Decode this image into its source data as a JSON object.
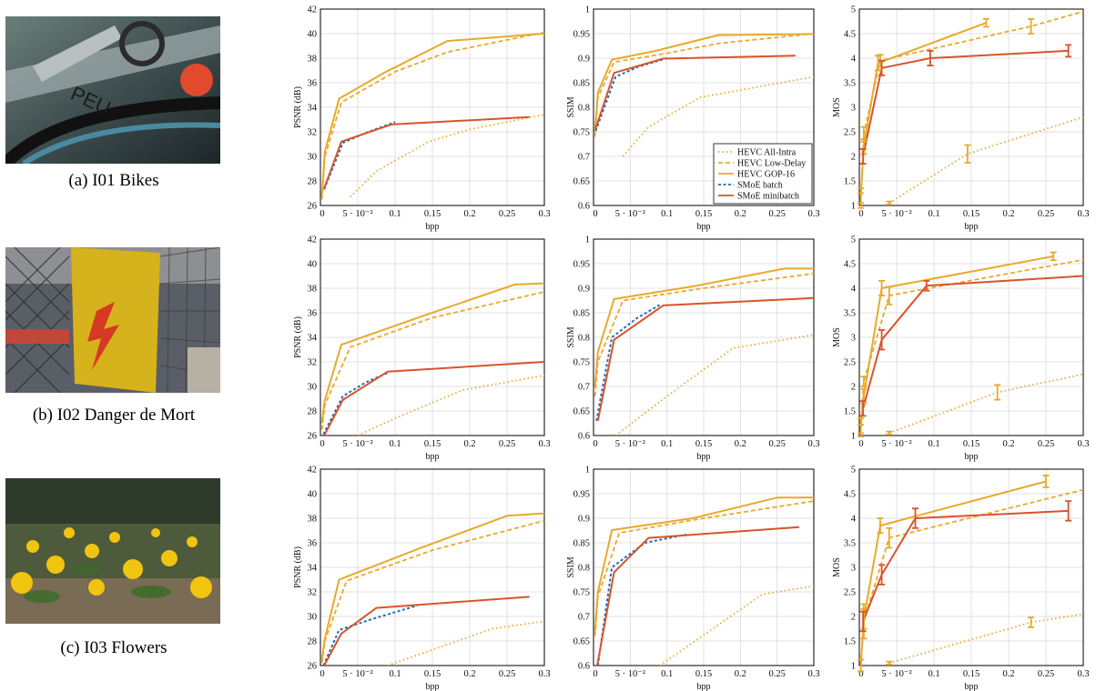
{
  "captions": [
    "(a) I01 Bikes",
    "(b) I02 Danger de Mort",
    "(c) I03 Flowers"
  ],
  "thumbnails": [
    {
      "alt": "I01 Bikes photo",
      "icon": "bicycle-photo"
    },
    {
      "alt": "I02 Danger de Mort photo",
      "icon": "danger-sign-photo"
    },
    {
      "alt": "I03 Flowers photo",
      "icon": "flowers-photo"
    }
  ],
  "colors": {
    "hevc": "#E8A92A",
    "smoe_batch": "#1F6FB4",
    "smoe_minibatch": "#D9532B",
    "grid": "#d9d9d9"
  },
  "legend": {
    "position": "inside lower-right of row 1 SSIM plot",
    "entries": [
      {
        "label": "HEVC All-Intra",
        "style": "dotted",
        "color": "#E8A92A"
      },
      {
        "label": "HEVC Low-Delay",
        "style": "dashed",
        "color": "#E8A92A"
      },
      {
        "label": "HEVC GOP-16",
        "style": "solid",
        "color": "#E8A92A"
      },
      {
        "label": "SMoE batch",
        "style": "dashed",
        "color": "#1F6FB4"
      },
      {
        "label": "SMoE minibatch",
        "style": "solid",
        "color": "#D9532B"
      }
    ]
  },
  "chart_data": [
    {
      "type": "line",
      "image": "I01 Bikes",
      "metric": "PSNR",
      "xlabel": "bpp",
      "ylabel": "PSNR (dB)",
      "xlim": [
        0,
        0.3
      ],
      "ylim": [
        26,
        42
      ],
      "xticks": [
        "0",
        "5 · 10⁻²",
        "0.1",
        "0.15",
        "0.2",
        "0.25",
        "0.3"
      ],
      "yticks": [
        "26",
        "28",
        "30",
        "32",
        "34",
        "36",
        "38",
        "40",
        "42"
      ],
      "grid": true,
      "series": [
        {
          "name": "HEVC All-Intra",
          "x": [
            0.04,
            0.075,
            0.145,
            0.2,
            0.3
          ],
          "y": [
            26.7,
            28.8,
            31.2,
            32.2,
            33.4
          ]
        },
        {
          "name": "HEVC Low-Delay",
          "x": [
            0.002,
            0.006,
            0.028,
            0.1,
            0.17,
            0.3
          ],
          "y": [
            26.5,
            30.0,
            34.4,
            36.9,
            38.5,
            40.1
          ]
        },
        {
          "name": "HEVC GOP-16",
          "x": [
            0.002,
            0.006,
            0.025,
            0.085,
            0.17,
            0.3
          ],
          "y": [
            26.8,
            30.4,
            34.7,
            36.8,
            39.4,
            40.0
          ]
        },
        {
          "name": "SMoE batch",
          "x": [
            0.005,
            0.03,
            0.06,
            0.1
          ],
          "y": [
            27.3,
            31.1,
            31.9,
            32.8
          ]
        },
        {
          "name": "SMoE minibatch",
          "x": [
            0.005,
            0.028,
            0.095,
            0.28
          ],
          "y": [
            27.4,
            31.2,
            32.6,
            33.2
          ]
        }
      ]
    },
    {
      "type": "line",
      "image": "I01 Bikes",
      "metric": "SSIM",
      "xlabel": "bpp",
      "ylabel": "SSIM",
      "xlim": [
        0,
        0.3
      ],
      "ylim": [
        0.6,
        1
      ],
      "xticks": [
        "0",
        "5 · 10⁻²",
        "0.1",
        "0.15",
        "0.2",
        "0.25",
        "0.3"
      ],
      "yticks": [
        "0.6",
        "0.65",
        "0.7",
        "0.75",
        "0.8",
        "0.85",
        "0.9",
        "0.95",
        "1"
      ],
      "grid": true,
      "series": [
        {
          "name": "HEVC All-Intra",
          "x": [
            0.04,
            0.075,
            0.145,
            0.2,
            0.3
          ],
          "y": [
            0.7,
            0.76,
            0.82,
            0.835,
            0.862
          ]
        },
        {
          "name": "HEVC Low-Delay",
          "x": [
            0.002,
            0.006,
            0.028,
            0.1,
            0.17,
            0.3
          ],
          "y": [
            0.74,
            0.82,
            0.892,
            0.91,
            0.93,
            0.95
          ]
        },
        {
          "name": "HEVC GOP-16",
          "x": [
            0.002,
            0.006,
            0.025,
            0.085,
            0.17,
            0.3
          ],
          "y": [
            0.75,
            0.83,
            0.897,
            0.915,
            0.947,
            0.949
          ]
        },
        {
          "name": "SMoE batch",
          "x": [
            0.003,
            0.03,
            0.06,
            0.1
          ],
          "y": [
            0.752,
            0.862,
            0.882,
            0.9
          ]
        },
        {
          "name": "SMoE minibatch",
          "x": [
            0.003,
            0.028,
            0.095,
            0.275
          ],
          "y": [
            0.757,
            0.87,
            0.899,
            0.905
          ]
        }
      ]
    },
    {
      "type": "line",
      "image": "I01 Bikes",
      "metric": "MOS",
      "xlabel": "bpp",
      "ylabel": "MOS",
      "xlim": [
        0,
        0.3
      ],
      "ylim": [
        1,
        5
      ],
      "xticks": [
        "0",
        "5 · 10⁻²",
        "0.1",
        "0.15",
        "0.2",
        "0.25",
        "0.3"
      ],
      "yticks": [
        "1",
        "1.5",
        "2",
        "2.5",
        "3",
        "3.5",
        "4",
        "4.5",
        "5"
      ],
      "grid": true,
      "series": [
        {
          "name": "HEVC All-Intra",
          "x": [
            0.04,
            0.145,
            0.3
          ],
          "y": [
            1.05,
            2.05,
            2.8
          ],
          "err": [
            0.03,
            0.18,
            null
          ]
        },
        {
          "name": "HEVC Low-Delay",
          "x": [
            0.002,
            0.006,
            0.028,
            0.23,
            0.3
          ],
          "y": [
            1.1,
            2.45,
            3.95,
            4.65,
            4.95
          ],
          "err": [
            0.15,
            0.15,
            0.12,
            0.15,
            null
          ]
        },
        {
          "name": "HEVC GOP-16",
          "x": [
            0.002,
            0.006,
            0.025,
            0.17
          ],
          "y": [
            1.2,
            2.2,
            3.9,
            4.72
          ],
          "err": [
            0.15,
            0.15,
            0.15,
            0.08
          ]
        },
        {
          "name": "SMoE minibatch",
          "x": [
            0.005,
            0.03,
            0.095,
            0.28
          ],
          "y": [
            2.0,
            3.8,
            4.0,
            4.15
          ],
          "err": [
            0.15,
            0.15,
            0.15,
            0.12
          ]
        }
      ]
    },
    {
      "type": "line",
      "image": "I02 Danger de Mort",
      "metric": "PSNR",
      "xlabel": "bpp",
      "ylabel": "PSNR (dB)",
      "xlim": [
        0,
        0.3
      ],
      "ylim": [
        26,
        42
      ],
      "xticks": [
        "0",
        "5 · 10⁻²",
        "0.1",
        "0.15",
        "0.2",
        "0.25",
        "0.3"
      ],
      "yticks": [
        "26",
        "28",
        "30",
        "32",
        "34",
        "36",
        "38",
        "40",
        "42"
      ],
      "grid": true,
      "series": [
        {
          "name": "HEVC All-Intra",
          "x": [
            0.05,
            0.1,
            0.19,
            0.3
          ],
          "y": [
            26.0,
            27.4,
            29.7,
            30.9
          ]
        },
        {
          "name": "HEVC Low-Delay",
          "x": [
            0.002,
            0.006,
            0.04,
            0.15,
            0.3
          ],
          "y": [
            26.5,
            28.5,
            33.2,
            35.6,
            37.7
          ]
        },
        {
          "name": "HEVC GOP-16",
          "x": [
            0.002,
            0.006,
            0.028,
            0.14,
            0.26,
            0.3
          ],
          "y": [
            27.0,
            28.9,
            33.4,
            35.8,
            38.3,
            38.4
          ]
        },
        {
          "name": "SMoE batch",
          "x": [
            0.004,
            0.03,
            0.06,
            0.09
          ],
          "y": [
            26.1,
            29.2,
            30.3,
            31.1
          ]
        },
        {
          "name": "SMoE minibatch",
          "x": [
            0.005,
            0.03,
            0.09,
            0.3
          ],
          "y": [
            26.0,
            28.9,
            31.2,
            32.0
          ]
        }
      ]
    },
    {
      "type": "line",
      "image": "I02 Danger de Mort",
      "metric": "SSIM",
      "xlabel": "bpp",
      "ylabel": "SSIM",
      "xlim": [
        0,
        0.3
      ],
      "ylim": [
        0.6,
        1
      ],
      "xticks": [
        "0",
        "5 · 10⁻²",
        "0.1",
        "0.15",
        "0.2",
        "0.25",
        "0.3"
      ],
      "yticks": [
        "0.6",
        "0.65",
        "0.7",
        "0.75",
        "0.8",
        "0.85",
        "0.9",
        "0.95",
        "1"
      ],
      "grid": true,
      "series": [
        {
          "name": "HEVC All-Intra",
          "x": [
            0.03,
            0.1,
            0.19,
            0.3
          ],
          "y": [
            0.6,
            0.68,
            0.778,
            0.805
          ]
        },
        {
          "name": "HEVC Low-Delay",
          "x": [
            0.002,
            0.006,
            0.04,
            0.15,
            0.3
          ],
          "y": [
            0.68,
            0.75,
            0.875,
            0.9,
            0.93
          ]
        },
        {
          "name": "HEVC GOP-16",
          "x": [
            0.002,
            0.006,
            0.028,
            0.14,
            0.26,
            0.3
          ],
          "y": [
            0.7,
            0.77,
            0.878,
            0.905,
            0.94,
            0.94
          ]
        },
        {
          "name": "SMoE batch",
          "x": [
            0.004,
            0.025,
            0.06,
            0.09
          ],
          "y": [
            0.63,
            0.8,
            0.84,
            0.866
          ]
        },
        {
          "name": "SMoE minibatch",
          "x": [
            0.006,
            0.028,
            0.095,
            0.3
          ],
          "y": [
            0.63,
            0.795,
            0.865,
            0.88
          ]
        }
      ]
    },
    {
      "type": "line",
      "image": "I02 Danger de Mort",
      "metric": "MOS",
      "xlabel": "bpp",
      "ylabel": "MOS",
      "xlim": [
        0,
        0.3
      ],
      "ylim": [
        1,
        5
      ],
      "xticks": [
        "0",
        "5 · 10⁻²",
        "0.1",
        "0.15",
        "0.2",
        "0.25",
        "0.3"
      ],
      "yticks": [
        "1",
        "1.5",
        "2",
        "2.5",
        "3",
        "3.5",
        "4",
        "4.5",
        "5"
      ],
      "grid": true,
      "series": [
        {
          "name": "HEVC All-Intra",
          "x": [
            0.04,
            0.185,
            0.3
          ],
          "y": [
            1.05,
            1.88,
            2.25
          ],
          "err": [
            0.03,
            0.15,
            null
          ]
        },
        {
          "name": "HEVC Low-Delay",
          "x": [
            0.002,
            0.006,
            0.04,
            0.3
          ],
          "y": [
            1.1,
            2.1,
            3.85,
            4.58
          ],
          "err": [
            0.12,
            0.1,
            0.18,
            null
          ]
        },
        {
          "name": "HEVC GOP-16",
          "x": [
            0.002,
            0.006,
            0.03,
            0.26
          ],
          "y": [
            1.2,
            1.8,
            4.0,
            4.65
          ],
          "err": [
            0.15,
            0.15,
            0.15,
            0.08
          ]
        },
        {
          "name": "SMoE minibatch",
          "x": [
            0.005,
            0.03,
            0.09,
            0.3
          ],
          "y": [
            1.55,
            2.95,
            4.05,
            4.25
          ],
          "err": [
            0.15,
            0.2,
            0.1,
            null
          ]
        }
      ]
    },
    {
      "type": "line",
      "image": "I03 Flowers",
      "metric": "PSNR",
      "xlabel": "bpp",
      "ylabel": "PSNR (dB)",
      "xlim": [
        0,
        0.3
      ],
      "ylim": [
        26,
        42
      ],
      "xticks": [
        "0",
        "5 · 10⁻²",
        "0.1",
        "0.15",
        "0.2",
        "0.25",
        "0.3"
      ],
      "yticks": [
        "26",
        "28",
        "30",
        "32",
        "34",
        "36",
        "38",
        "40",
        "42"
      ],
      "grid": true,
      "series": [
        {
          "name": "HEVC All-Intra",
          "x": [
            0.09,
            0.23,
            0.3
          ],
          "y": [
            26.0,
            29.0,
            29.6
          ]
        },
        {
          "name": "HEVC Low-Delay",
          "x": [
            0.002,
            0.006,
            0.035,
            0.15,
            0.3
          ],
          "y": [
            26.2,
            28.0,
            32.9,
            35.4,
            37.8
          ]
        },
        {
          "name": "HEVC GOP-16",
          "x": [
            0.002,
            0.006,
            0.025,
            0.135,
            0.25,
            0.3
          ],
          "y": [
            26.5,
            28.2,
            33.0,
            35.6,
            38.2,
            38.4
          ]
        },
        {
          "name": "SMoE batch",
          "x": [
            0.004,
            0.025,
            0.07,
            0.13
          ],
          "y": [
            26.0,
            28.9,
            29.8,
            30.9
          ]
        },
        {
          "name": "SMoE minibatch",
          "x": [
            0.005,
            0.028,
            0.075,
            0.28
          ],
          "y": [
            26.0,
            28.6,
            30.7,
            31.6
          ]
        }
      ]
    },
    {
      "type": "line",
      "image": "I03 Flowers",
      "metric": "SSIM",
      "xlabel": "bpp",
      "ylabel": "SSIM",
      "xlim": [
        0,
        0.3
      ],
      "ylim": [
        0.6,
        1
      ],
      "xticks": [
        "0",
        "5 · 10⁻²",
        "0.1",
        "0.15",
        "0.2",
        "0.25",
        "0.3"
      ],
      "yticks": [
        "0.6",
        "0.65",
        "0.7",
        "0.75",
        "0.8",
        "0.85",
        "0.9",
        "0.95",
        "1"
      ],
      "grid": true,
      "series": [
        {
          "name": "HEVC All-Intra",
          "x": [
            0.09,
            0.23,
            0.3
          ],
          "y": [
            0.6,
            0.745,
            0.762
          ]
        },
        {
          "name": "HEVC Low-Delay",
          "x": [
            0.002,
            0.006,
            0.035,
            0.15,
            0.3
          ],
          "y": [
            0.66,
            0.74,
            0.87,
            0.9,
            0.935
          ]
        },
        {
          "name": "HEVC GOP-16",
          "x": [
            0.002,
            0.006,
            0.025,
            0.135,
            0.25,
            0.3
          ],
          "y": [
            0.67,
            0.75,
            0.876,
            0.9,
            0.942,
            0.942
          ]
        },
        {
          "name": "SMoE batch",
          "x": [
            0.006,
            0.025,
            0.07,
            0.13
          ],
          "y": [
            0.6,
            0.8,
            0.85,
            0.868
          ]
        },
        {
          "name": "SMoE minibatch",
          "x": [
            0.005,
            0.028,
            0.075,
            0.28
          ],
          "y": [
            0.6,
            0.79,
            0.86,
            0.882
          ]
        }
      ]
    },
    {
      "type": "line",
      "image": "I03 Flowers",
      "metric": "MOS",
      "xlabel": "bpp",
      "ylabel": "MOS",
      "xlim": [
        0,
        0.3
      ],
      "ylim": [
        1,
        5
      ],
      "xticks": [
        "0",
        "5 · 10⁻²",
        "0.1",
        "0.15",
        "0.2",
        "0.25",
        "0.3"
      ],
      "yticks": [
        "1",
        "1.5",
        "2",
        "2.5",
        "3",
        "3.5",
        "4",
        "4.5",
        "5"
      ],
      "grid": true,
      "series": [
        {
          "name": "HEVC All-Intra",
          "x": [
            0.04,
            0.23,
            0.3
          ],
          "y": [
            1.05,
            1.88,
            2.05
          ],
          "err": [
            0.03,
            0.1,
            null
          ]
        },
        {
          "name": "HEVC Low-Delay",
          "x": [
            0.002,
            0.006,
            0.04,
            0.3
          ],
          "y": [
            1.0,
            1.9,
            3.6,
            4.58
          ],
          "err": [
            0.12,
            0.35,
            0.2,
            null
          ]
        },
        {
          "name": "HEVC GOP-16",
          "x": [
            0.002,
            0.006,
            0.028,
            0.25
          ],
          "y": [
            1.0,
            1.95,
            3.85,
            4.75
          ],
          "err": [
            0.12,
            0.2,
            0.15,
            0.12
          ]
        },
        {
          "name": "SMoE minibatch",
          "x": [
            0.005,
            0.03,
            0.075,
            0.28
          ],
          "y": [
            1.9,
            2.85,
            4.0,
            4.15
          ],
          "err": [
            0.2,
            0.2,
            0.2,
            0.2
          ]
        }
      ]
    }
  ]
}
